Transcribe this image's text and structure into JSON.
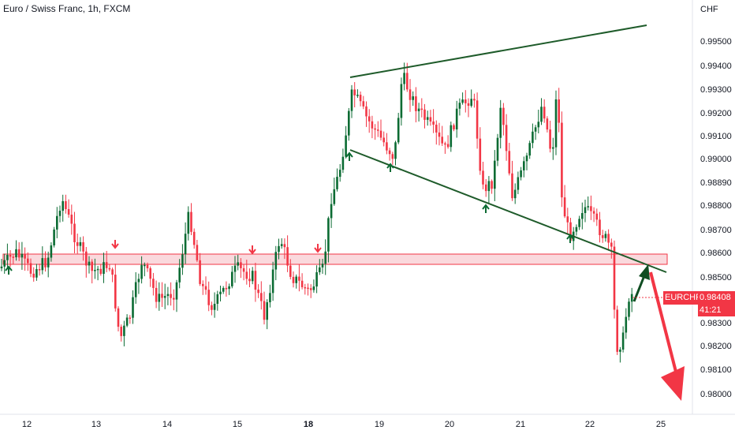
{
  "header": {
    "title": "Euro / Swiss Franc, 1h, FXCM",
    "currency": "CHF"
  },
  "price_label": {
    "symbol": "EURCHF",
    "value": "0.98408",
    "countdown": "41:21"
  },
  "colors": {
    "up": "#0b6b33",
    "down": "#f23645",
    "trend": "#1e5b2a",
    "zone_fill": "#f8c9cf",
    "zone_stroke": "#f23645",
    "forecast": "#f23645"
  },
  "chart_data": {
    "type": "candlestick",
    "instrument": "EURCHF",
    "y_ticks": [
      "0.99500",
      "0.99400",
      "0.99300",
      "0.99200",
      "0.99100",
      "0.99000",
      "0.98890",
      "0.98800",
      "0.98700",
      "0.98600",
      "0.98500",
      "0.98300",
      "0.98200",
      "0.98100",
      "0.98000"
    ],
    "x_ticks": [
      {
        "label": "12",
        "bold": false
      },
      {
        "label": "13",
        "bold": false
      },
      {
        "label": "14",
        "bold": false
      },
      {
        "label": "15",
        "bold": false
      },
      {
        "label": "18",
        "bold": true
      },
      {
        "label": "19",
        "bold": false
      },
      {
        "label": "20",
        "bold": false
      },
      {
        "label": "21",
        "bold": false
      },
      {
        "label": "22",
        "bold": false
      },
      {
        "label": "25",
        "bold": false
      }
    ],
    "ylim": [
      0.9795,
      0.9956
    ],
    "support_zone": [
      0.98556,
      0.9859
    ],
    "trendlines": [
      {
        "from": [
          0.485,
          0.9936
        ],
        "to": [
          0.882,
          0.9956
        ]
      },
      {
        "from": [
          0.485,
          0.9904
        ],
        "to": [
          0.91,
          0.9851
        ]
      }
    ],
    "last_price": 0.98408
  }
}
